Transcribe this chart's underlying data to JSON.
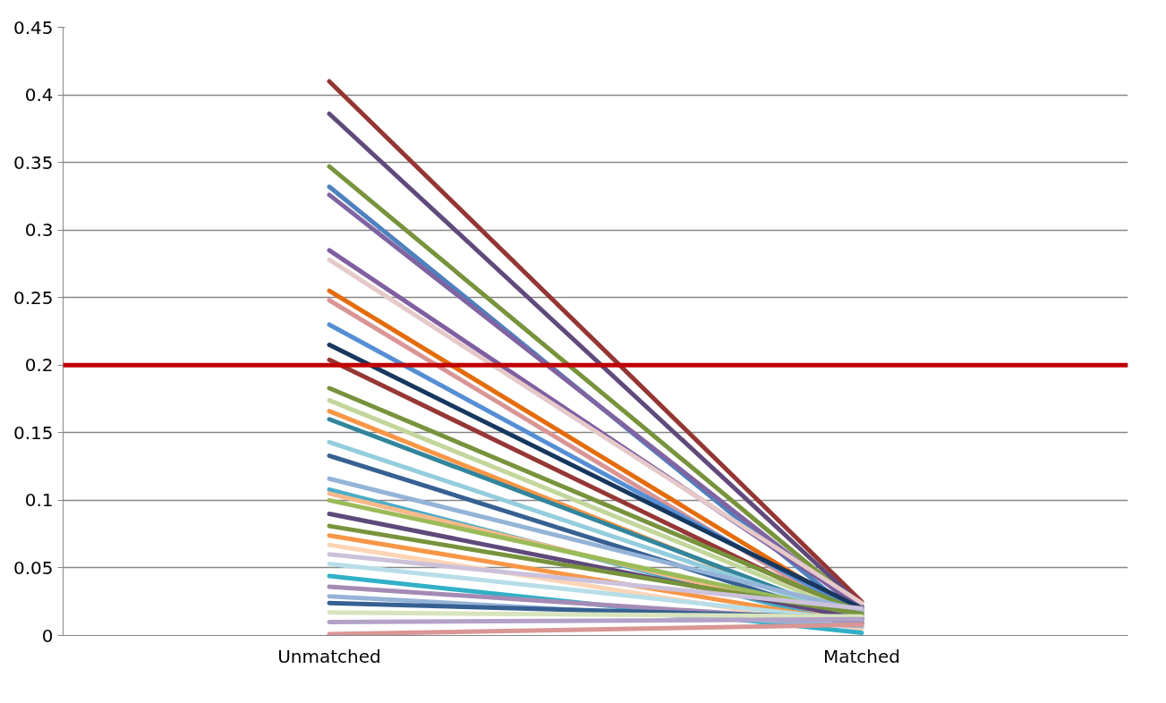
{
  "chart_data": {
    "type": "line",
    "categories": [
      "Unmatched",
      "Matched"
    ],
    "ylim": [
      0,
      0.45
    ],
    "yticks": [
      0,
      0.05,
      0.1,
      0.15,
      0.2,
      0.25,
      0.3,
      0.35,
      0.4,
      0.45
    ],
    "grid": "y",
    "marker": "none",
    "line_style": "solid",
    "ref_lines": [
      {
        "axis": "y",
        "value": 0.2,
        "label": null,
        "color": "#c00000"
      }
    ],
    "series": [
      {
        "color": "#943634",
        "values": [
          0.41,
          0.025
        ]
      },
      {
        "color": "#604a7b",
        "values": [
          0.386,
          0.022
        ]
      },
      {
        "color": "#77933c",
        "values": [
          0.347,
          0.02
        ]
      },
      {
        "color": "#4f81bd",
        "values": [
          0.332,
          0.012
        ]
      },
      {
        "color": "#8064a2",
        "values": [
          0.326,
          0.018
        ]
      },
      {
        "color": "#7f5fa0",
        "values": [
          0.285,
          0.021
        ]
      },
      {
        "color": "#e6c9c9",
        "values": [
          0.278,
          0.024
        ]
      },
      {
        "color": "#e46c0a",
        "values": [
          0.255,
          0.015
        ]
      },
      {
        "color": "#d99594",
        "values": [
          0.248,
          0.01
        ]
      },
      {
        "color": "#558ed5",
        "values": [
          0.23,
          0.016
        ]
      },
      {
        "color": "#17375e",
        "values": [
          0.215,
          0.02
        ]
      },
      {
        "color": "#953735",
        "values": [
          0.204,
          0.013
        ]
      },
      {
        "color": "#77933c",
        "values": [
          0.183,
          0.017
        ]
      },
      {
        "color": "#c3d69b",
        "values": [
          0.174,
          0.014
        ]
      },
      {
        "color": "#f79646",
        "values": [
          0.166,
          0.008
        ]
      },
      {
        "color": "#31859c",
        "values": [
          0.16,
          0.011
        ]
      },
      {
        "color": "#93cddd",
        "values": [
          0.143,
          0.012
        ]
      },
      {
        "color": "#376092",
        "values": [
          0.133,
          0.009
        ]
      },
      {
        "color": "#95b3d7",
        "values": [
          0.116,
          0.018
        ]
      },
      {
        "color": "#4bacc6",
        "values": [
          0.108,
          0.006
        ]
      },
      {
        "color": "#fab98c",
        "values": [
          0.105,
          0.01
        ]
      },
      {
        "color": "#9bbb59",
        "values": [
          0.1,
          0.015
        ]
      },
      {
        "color": "#5f497a",
        "values": [
          0.09,
          0.012
        ]
      },
      {
        "color": "#77933c",
        "values": [
          0.081,
          0.016
        ]
      },
      {
        "color": "#f79646",
        "values": [
          0.074,
          0.009
        ]
      },
      {
        "color": "#fcd5b5",
        "values": [
          0.067,
          0.005
        ]
      },
      {
        "color": "#ccc1da",
        "values": [
          0.06,
          0.02
        ]
      },
      {
        "color": "#b7dee8",
        "values": [
          0.053,
          0.011
        ]
      },
      {
        "color": "#31b0c6",
        "values": [
          0.044,
          0.002
        ]
      },
      {
        "color": "#a48bb5",
        "values": [
          0.036,
          0.01
        ]
      },
      {
        "color": "#95b3d7",
        "values": [
          0.029,
          0.007
        ]
      },
      {
        "color": "#366092",
        "values": [
          0.024,
          0.013
        ]
      },
      {
        "color": "#d7e4bd",
        "values": [
          0.017,
          0.014
        ]
      },
      {
        "color": "#b3a2c7",
        "values": [
          0.01,
          0.012
        ]
      },
      {
        "color": "#d99694",
        "values": [
          0.001,
          0.008
        ]
      }
    ]
  }
}
